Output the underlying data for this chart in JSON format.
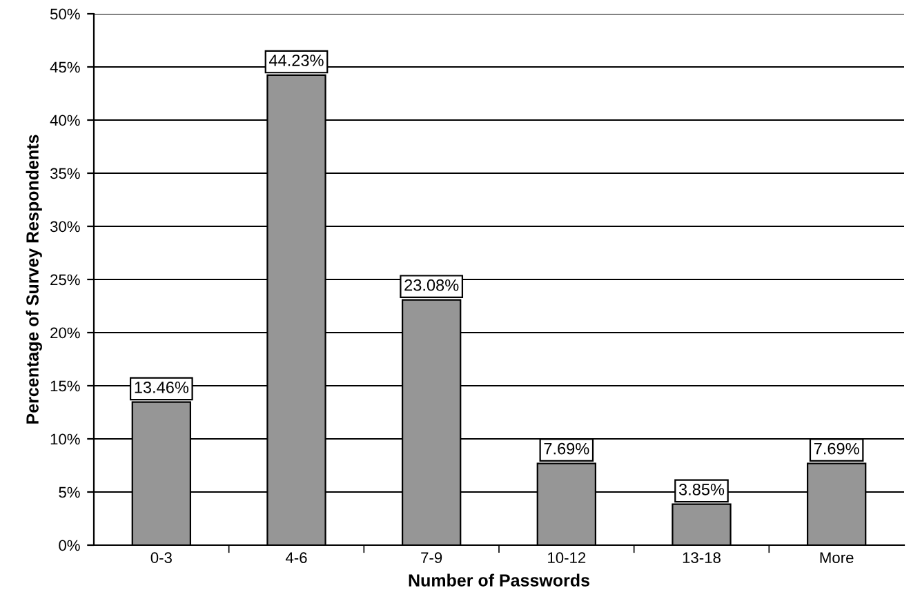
{
  "chart_data": {
    "type": "bar",
    "xlabel": "Number of Passwords",
    "ylabel": "Percentage of Survey Respondents",
    "categories": [
      "0-3",
      "4-6",
      "7-9",
      "10-12",
      "13-18",
      "More"
    ],
    "values": [
      13.46,
      44.23,
      23.08,
      7.69,
      3.85,
      7.69
    ],
    "value_labels": [
      "13.46%",
      "44.23%",
      "23.08%",
      "7.69%",
      "3.85%",
      "7.69%"
    ],
    "color": "#969696",
    "ylim": [
      0,
      50
    ],
    "yticks": [
      {
        "value": 0,
        "label": "0%"
      },
      {
        "value": 5,
        "label": "5%"
      },
      {
        "value": 10,
        "label": "10%"
      },
      {
        "value": 15,
        "label": "15%"
      },
      {
        "value": 20,
        "label": "20%"
      },
      {
        "value": 25,
        "label": "25%"
      },
      {
        "value": 30,
        "label": "30%"
      },
      {
        "value": 35,
        "label": "35%"
      },
      {
        "value": 40,
        "label": "40%"
      },
      {
        "value": 45,
        "label": "45%"
      },
      {
        "value": 50,
        "label": "50%"
      }
    ],
    "grid": "y",
    "legend": false
  }
}
